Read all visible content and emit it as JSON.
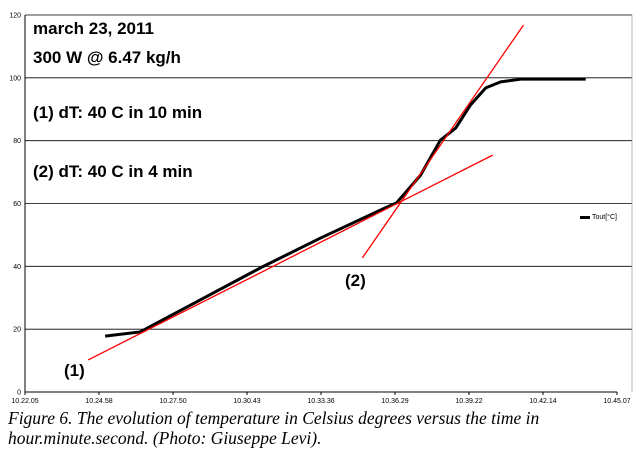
{
  "chart_data": {
    "type": "line",
    "title_lines": [
      "march 23, 2011",
      "300 W  @ 6.47 kg/h",
      "(1) dT: 40 C in 10 min",
      "(2) dT: 40 C in 4 min"
    ],
    "xlabel": "",
    "ylabel": "",
    "x_unit": "minutes after 10:00",
    "xlim": [
      22.083,
      45.117
    ],
    "ylim": [
      0,
      120
    ],
    "yticks": [
      0,
      20,
      40,
      60,
      80,
      100,
      120
    ],
    "xtick_labels": [
      "10.22.05",
      "10.24.58",
      "10.27.50",
      "10.30.43",
      "10.33.36",
      "10.36.29",
      "10.39.22",
      "10.42.14",
      "10.45.07"
    ],
    "grid": true,
    "legend": {
      "entries": [
        "Tout[°C]"
      ],
      "placement": "right"
    },
    "series": [
      {
        "name": "Tout[°C]",
        "color": "#000000",
        "x": [
          25.2,
          26.56,
          28.9,
          31.24,
          33.58,
          35.91,
          36.54,
          37.47,
          38.25,
          38.84,
          39.42,
          40.01,
          40.59,
          41.37,
          43.9
        ],
        "y": [
          17.8,
          19.1,
          29.3,
          39.5,
          49.0,
          57.9,
          60.2,
          69.0,
          80.2,
          84.0,
          91.4,
          96.8,
          98.7,
          99.6,
          99.6
        ]
      }
    ],
    "fit_lines": [
      {
        "label": "(1)",
        "color": "#ff0000",
        "x": [
          24.54,
          40.28
        ],
        "y": [
          10.2,
          75.4
        ]
      },
      {
        "label": "(2)",
        "color": "#ff0000",
        "x": [
          35.21,
          41.48
        ],
        "y": [
          42.7,
          116.8
        ]
      }
    ]
  },
  "caption": "Figure 6. The evolution of temperature in Celsius degrees versus the time in hour.minute.second. (Photo: Giuseppe Levi)."
}
